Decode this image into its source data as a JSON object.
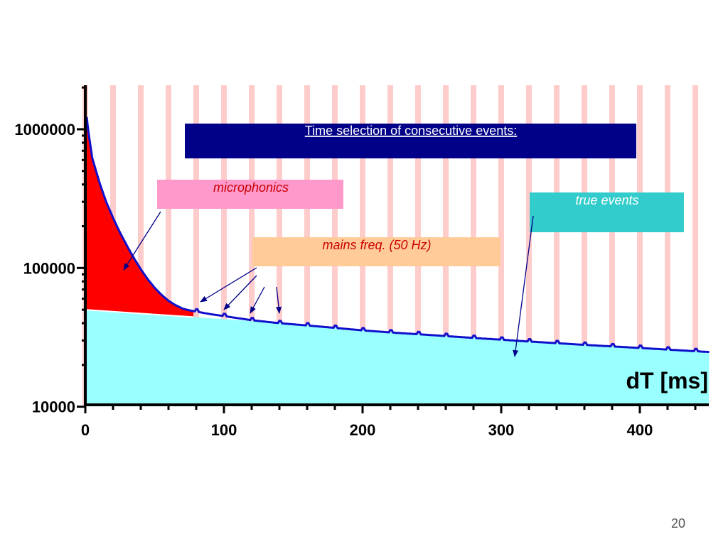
{
  "chart_data": {
    "type": "area",
    "xlabel": "dT  [ms]",
    "x_ticks": [
      "0",
      "100",
      "200",
      "300",
      "400"
    ],
    "y_ticks": [
      "10000",
      "100000",
      "1000000"
    ],
    "xlim": [
      0,
      450
    ],
    "ylim": [
      10000,
      2000000
    ],
    "yscale": "log",
    "mains_marker_period_ms": 20,
    "series": [
      {
        "x": [
          0,
          2,
          5,
          10,
          15,
          20,
          25,
          30,
          35,
          40,
          45,
          50,
          55,
          60,
          65,
          70,
          75,
          80,
          90,
          100,
          120,
          140,
          160,
          180,
          200,
          220,
          240,
          260,
          280,
          300,
          320,
          340,
          360,
          380,
          400,
          420,
          440,
          450
        ],
        "y": [
          1500000,
          1000000,
          620000,
          420000,
          300000,
          230000,
          180000,
          145000,
          118000,
          98000,
          83000,
          72000,
          64000,
          58000,
          54000,
          51000,
          49500,
          48500,
          46500,
          45000,
          42000,
          40000,
          38500,
          37000,
          35500,
          34300,
          33300,
          32300,
          31300,
          30400,
          29500,
          28700,
          27900,
          27200,
          26500,
          25800,
          25100,
          24800
        ]
      },
      {
        "x": [
          0,
          450
        ],
        "y": [
          50000,
          24800
        ]
      }
    ],
    "colors": {
      "measured_line": "#1010cc",
      "microphonics_fill": "#ff0000",
      "true_events_fill": "#99ffff",
      "mains_stripe": "#ffcccc"
    }
  },
  "annotations": {
    "title_box": {
      "text": "Time selection of consecutive events:",
      "bg": "#000088",
      "color": "#ffffff"
    },
    "microphonics": {
      "text": "microphonics",
      "bg": "#ff99cc",
      "color": "#cc0000"
    },
    "mains": {
      "text": "mains freq. (50 Hz)",
      "bg": "#ffcc99",
      "color": "#cc0000"
    },
    "true_events": {
      "text": "true events",
      "bg": "#33cccc",
      "color": "#ffffff"
    }
  },
  "page_number": "20"
}
